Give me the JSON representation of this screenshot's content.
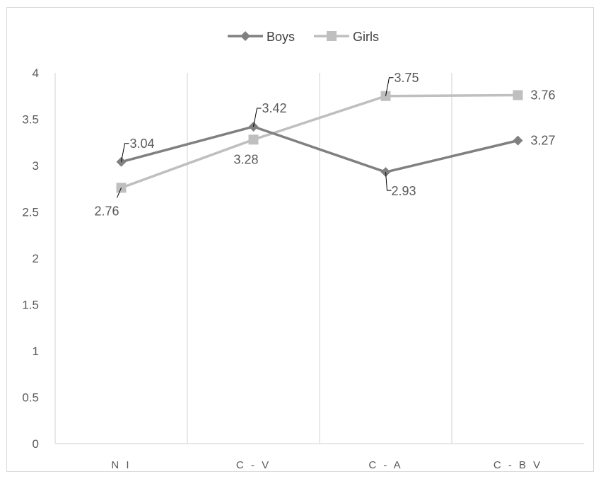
{
  "chart_data": {
    "type": "line",
    "title": "",
    "xlabel": "",
    "ylabel": "",
    "categories": [
      "N I",
      "C - V",
      "C - A",
      "C - B V"
    ],
    "ylim": [
      0,
      4
    ],
    "yticks": [
      0,
      0.5,
      1,
      1.5,
      2,
      2.5,
      3,
      3.5,
      4
    ],
    "grid": "vertical",
    "legend": "top-center",
    "series": [
      {
        "name": "Boys",
        "values": [
          3.04,
          3.42,
          2.93,
          3.27
        ],
        "labels": [
          "3.04",
          "3.42",
          "2.93",
          "3.27"
        ],
        "color": "#808080",
        "marker": "diamond"
      },
      {
        "name": "Girls",
        "values": [
          2.76,
          3.28,
          3.75,
          3.76
        ],
        "labels": [
          "2.76",
          "3.28",
          "3.75",
          "3.76"
        ],
        "color": "#BFBFBF",
        "marker": "square"
      }
    ]
  }
}
